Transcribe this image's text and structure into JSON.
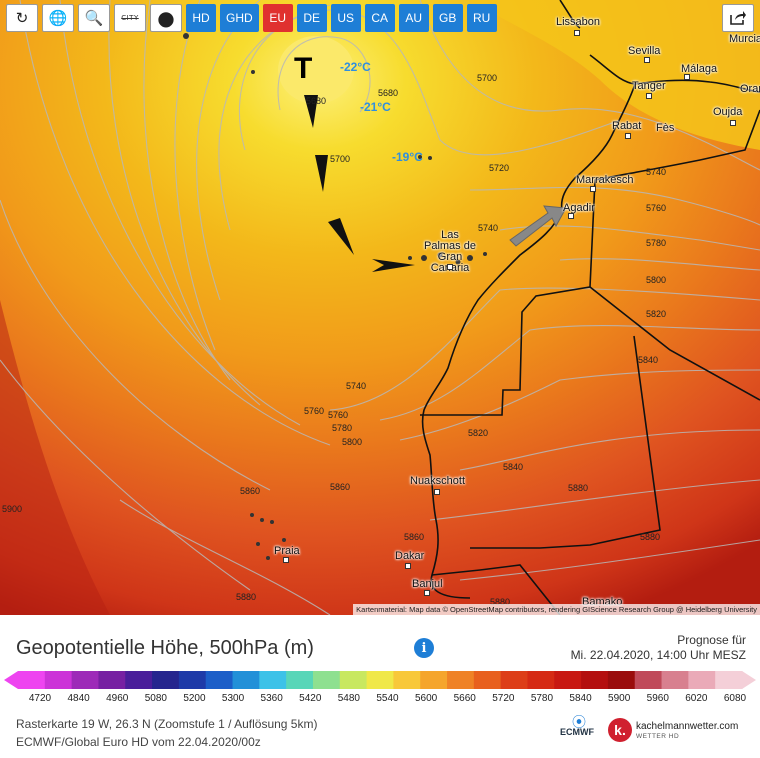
{
  "toolbar": {
    "buttons": [
      {
        "icon": "refresh-icon",
        "glyph": "↻"
      },
      {
        "icon": "globe-icon",
        "glyph": "🌐"
      },
      {
        "icon": "zoom-icon",
        "glyph": "🔍"
      },
      {
        "icon": "city-icon",
        "glyph": "CITY"
      },
      {
        "icon": "balloon-icon",
        "glyph": "●"
      }
    ],
    "regions": [
      "HD",
      "GHD",
      "EU",
      "DE",
      "US",
      "CA",
      "AU",
      "GB",
      "RU"
    ],
    "active_region": "EU"
  },
  "map": {
    "low_marker": "T",
    "temperatures": [
      "-22°C",
      "-21°C",
      "-19°C"
    ],
    "cities": [
      "Lissabon",
      "Sevilla",
      "Málaga",
      "Murcia",
      "Tanger",
      "Oran",
      "Rabat",
      "Fès",
      "Oujda",
      "Marrakesch",
      "Agadir",
      "Las Palmas de Gran Canaria",
      "Nuakschott",
      "Praia",
      "Dakar",
      "Banjul",
      "Bamako"
    ],
    "contour_labels": [
      "5680",
      "5680",
      "5700",
      "5720",
      "5740",
      "5760",
      "5700",
      "5780",
      "5740",
      "5800",
      "5820",
      "5840",
      "5740",
      "5760",
      "5760",
      "5780",
      "5800",
      "5820",
      "5840",
      "5860",
      "5860",
      "5880",
      "5880",
      "5860",
      "5880",
      "5880",
      "5900"
    ],
    "attribution": "Kartenmaterial: Map data © OpenStreetMap contributors, rendering GIScience Research Group @ Heidelberg University"
  },
  "footer": {
    "title": "Geopotentielle Höhe, 500hPa (m)",
    "forecast_label": "Prognose für",
    "forecast_date": "Mi. 22.04.2020, 14:00 Uhr MESZ",
    "meta_line1": "Rasterkarte 19 W, 26.3 N (Zoomstufe 1 / Auflösung 5km)",
    "meta_line2": "ECMWF/Global Euro HD vom 22.04.2020/00z",
    "ecmwf": "ECMWF",
    "brand": "kachelmannwetter.com",
    "brand_sub": "WETTER HD"
  },
  "colorbar": {
    "ticks": [
      "4720",
      "4840",
      "4960",
      "5080",
      "5200",
      "5300",
      "5360",
      "5420",
      "5480",
      "5540",
      "5600",
      "5660",
      "5720",
      "5780",
      "5840",
      "5900",
      "5960",
      "6020",
      "6080"
    ],
    "colors": [
      "#ee44f0",
      "#cc33d8",
      "#9d2ab8",
      "#7720a2",
      "#4a1e9a",
      "#25258e",
      "#1e3aa8",
      "#1c5ec8",
      "#2290d8",
      "#3cc2e8",
      "#58d6b8",
      "#8ee090",
      "#c8e860",
      "#f0e848",
      "#f8c83a",
      "#f5a52c",
      "#ef8226",
      "#e8601e",
      "#dd3e18",
      "#d52a14",
      "#c81812",
      "#b40f0f",
      "#9a0c0c",
      "#c04a5a",
      "#d8808f",
      "#eaaab8",
      "#f4cfd8"
    ]
  }
}
